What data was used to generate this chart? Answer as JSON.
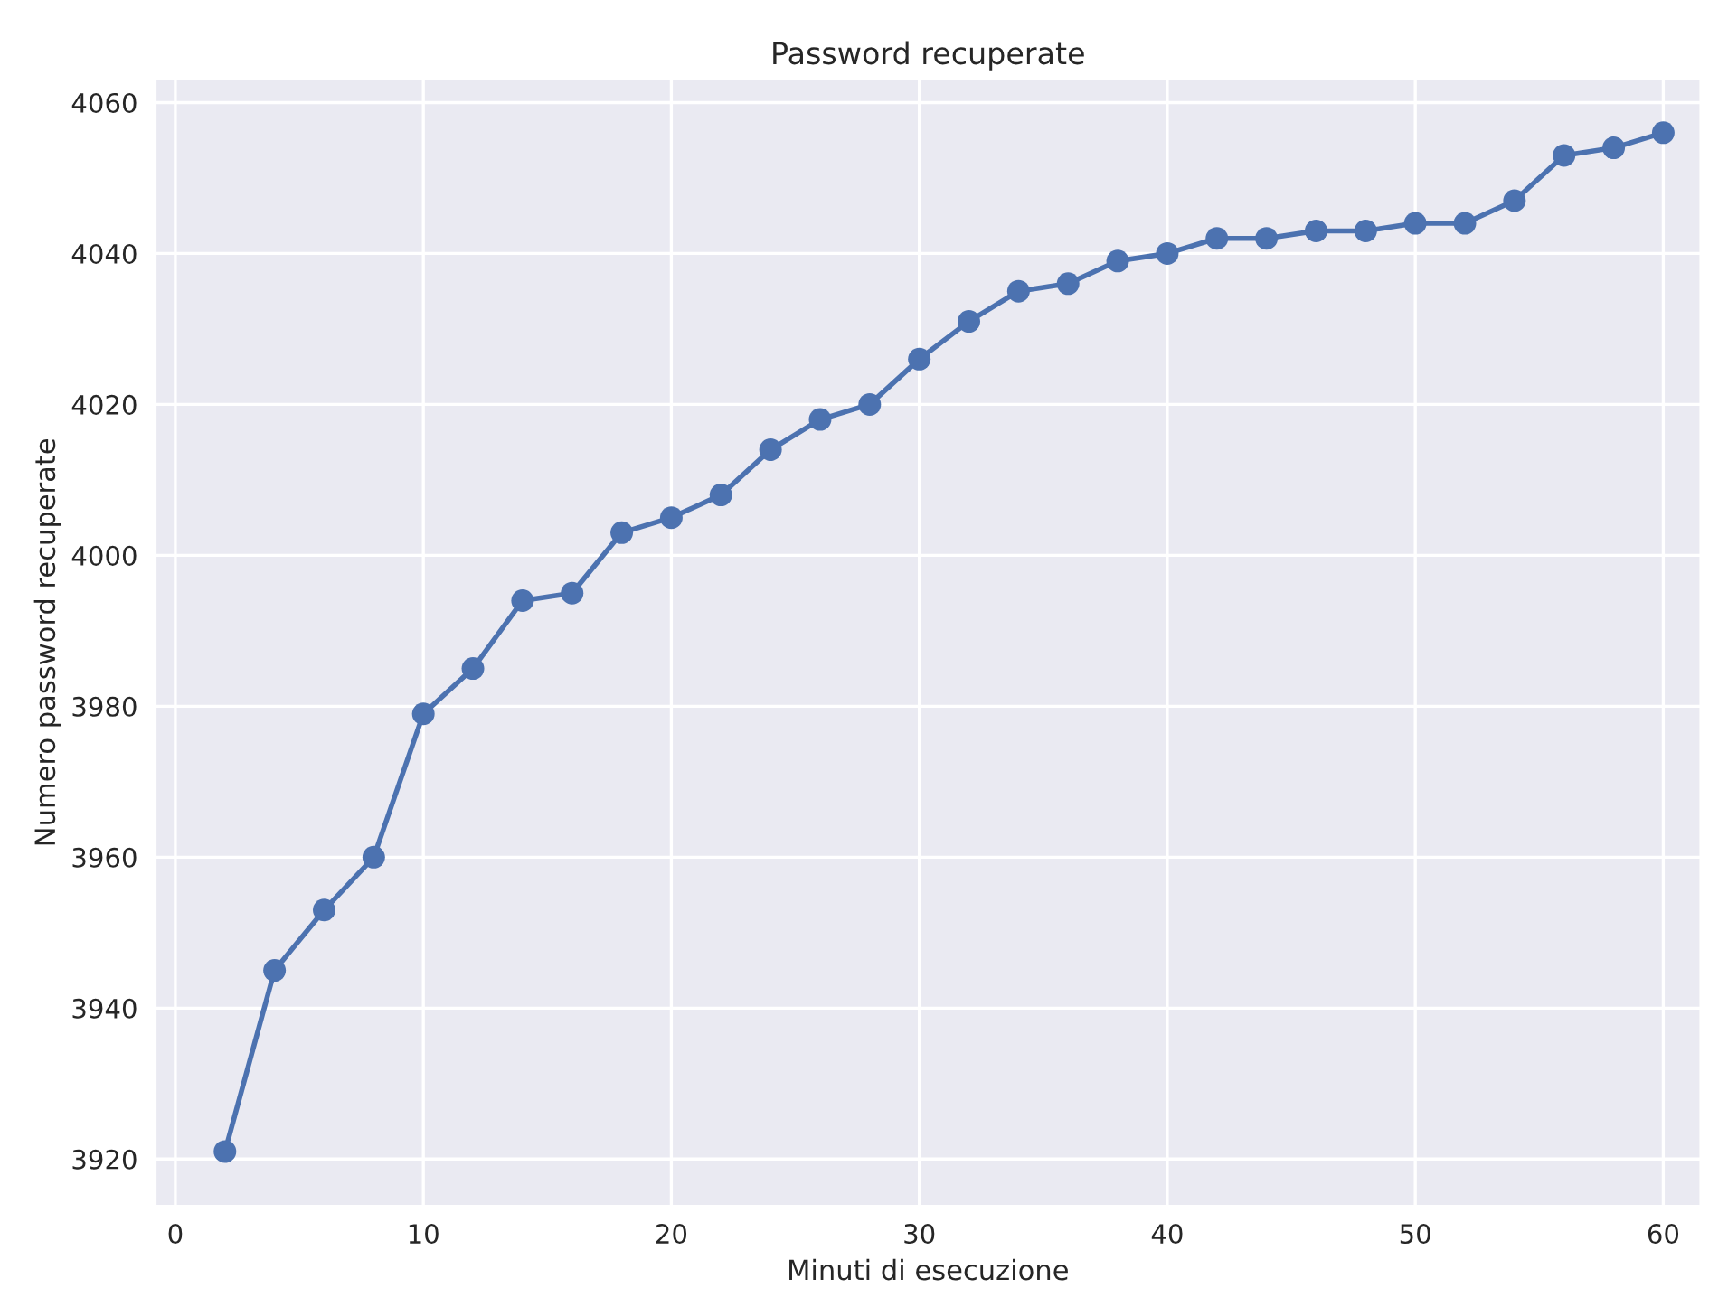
{
  "chart_data": {
    "type": "line",
    "title": "Password recuperate",
    "xlabel": "Minuti di esecuzione",
    "ylabel": "Numero password recuperate",
    "x": [
      2,
      4,
      6,
      8,
      10,
      12,
      14,
      16,
      18,
      20,
      22,
      24,
      26,
      28,
      30,
      32,
      34,
      36,
      38,
      40,
      42,
      44,
      46,
      48,
      50,
      52,
      54,
      56,
      58,
      60
    ],
    "series": [
      {
        "color": "#4c72b0",
        "values": [
          3921,
          3945,
          3953,
          3960,
          3979,
          3985,
          3994,
          3995,
          4003,
          4005,
          4008,
          4014,
          4018,
          4020,
          4026,
          4031,
          4035,
          4036,
          4039,
          4040,
          4042,
          4042,
          4043,
          4043,
          4044,
          4044,
          4047,
          4053,
          4054,
          4056
        ]
      }
    ],
    "xlim": [
      -0.8,
      61.5
    ],
    "ylim": [
      3913.8,
      4063.1
    ],
    "xticks": [
      0,
      10,
      20,
      30,
      40,
      50,
      60
    ],
    "yticks": [
      3920,
      3940,
      3960,
      3980,
      4000,
      4020,
      4040,
      4060
    ],
    "grid": true,
    "marker": "circle",
    "line_style": "solid"
  }
}
